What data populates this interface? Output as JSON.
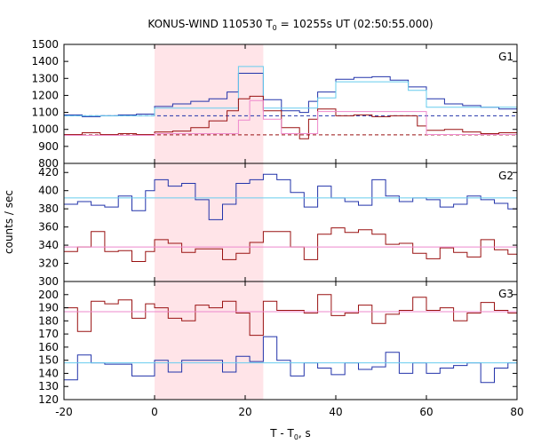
{
  "title": "KONUS-WIND 110530 T",
  "title_sub": "0",
  "title_rest": " = 10255s UT (02:50:55.000)",
  "ylabel": "counts / sec",
  "xlabel": "T - T",
  "xlabel_sub": "0",
  "xlabel_rest": ", s",
  "colors": {
    "shade": "#ffe4e8",
    "dark_blue": "#2233aa",
    "light_blue": "#66ccee",
    "dark_red": "#991111",
    "pink": "#ee88cc"
  },
  "chart_data": {
    "type": "line",
    "x_range": [
      -20,
      80
    ],
    "x_ticks": [
      -20,
      0,
      20,
      40,
      60,
      80
    ],
    "highlight": [
      0,
      24
    ],
    "panels": [
      {
        "name": "G1",
        "ylim": [
          800,
          1500
        ],
        "y_ticks": [
          800,
          900,
          1000,
          1100,
          1200,
          1300,
          1400,
          1500
        ],
        "series": [
          {
            "color": "dark_blue",
            "x": [
              -20,
              -16,
              -12,
              -8,
              -4,
              0,
              4,
              8,
              12,
              16,
              18.5,
              24,
              28,
              32,
              34,
              36,
              40,
              44,
              48,
              52,
              56,
              60,
              64,
              68,
              72,
              76,
              80
            ],
            "y": [
              1085,
              1075,
              1080,
              1085,
              1090,
              1135,
              1150,
              1165,
              1180,
              1220,
              1330,
              1175,
              1110,
              1100,
              1165,
              1220,
              1295,
              1305,
              1310,
              1290,
              1250,
              1180,
              1150,
              1140,
              1130,
              1120,
              1115
            ]
          },
          {
            "color": "light_blue",
            "x": [
              -20,
              -16,
              -12,
              -8,
              -4,
              0,
              4,
              8,
              12,
              16,
              18.5,
              24,
              28,
              32,
              34,
              36,
              40,
              44,
              48,
              52,
              56,
              60,
              64,
              68,
              72,
              76,
              80
            ],
            "y": [
              1080,
              1080,
              1080,
              1080,
              1080,
              1125,
              1125,
              1125,
              1125,
              1125,
              1370,
              1125,
              1125,
              1125,
              1125,
              1185,
              1280,
              1280,
              1280,
              1280,
              1230,
              1130,
              1130,
              1130,
              1130,
              1130,
              1130
            ]
          },
          {
            "color": "dark_red",
            "x": [
              -20,
              -16,
              -12,
              -8,
              -4,
              0,
              4,
              8,
              12,
              16,
              18.5,
              21,
              24,
              28,
              32,
              34,
              36,
              40,
              44,
              48,
              52,
              56,
              58,
              60,
              64,
              68,
              72,
              76,
              80
            ],
            "y": [
              970,
              980,
              970,
              975,
              970,
              985,
              990,
              1010,
              1050,
              1110,
              1180,
              1195,
              1110,
              1010,
              945,
              1060,
              1120,
              1080,
              1085,
              1075,
              1080,
              1080,
              1020,
              995,
              1000,
              985,
              975,
              980,
              970
            ]
          },
          {
            "color": "pink",
            "x": [
              -20,
              -16,
              -12,
              -8,
              -4,
              0,
              4,
              8,
              12,
              16,
              18.5,
              21,
              24,
              28,
              32,
              34,
              36,
              40,
              44,
              48,
              52,
              56,
              58,
              60,
              64,
              68,
              72,
              76,
              80
            ],
            "y": [
              965,
              965,
              965,
              965,
              965,
              975,
              975,
              975,
              975,
              975,
              1055,
              1170,
              1060,
              975,
              975,
              975,
              1105,
              1105,
              1105,
              1105,
              1105,
              1105,
              1105,
              970,
              970,
              970,
              970,
              970,
              970
            ]
          }
        ],
        "dashed": [
          {
            "color": "dark_blue",
            "y": 1080
          },
          {
            "color": "dark_red",
            "y": 968
          }
        ]
      },
      {
        "name": "G2",
        "ylim": [
          300,
          430
        ],
        "y_ticks": [
          300,
          320,
          340,
          360,
          380,
          400,
          420
        ],
        "series": [
          {
            "color": "dark_blue",
            "x": [
              -20,
              -17,
              -14,
              -11,
              -8,
              -5,
              -2,
              0,
              3,
              6,
              9,
              12,
              15,
              18,
              21,
              24,
              27,
              30,
              33,
              36,
              39,
              42,
              45,
              48,
              51,
              54,
              57,
              60,
              63,
              66,
              69,
              72,
              75,
              78,
              80
            ],
            "y": [
              385,
              388,
              384,
              382,
              394,
              378,
              400,
              412,
              405,
              408,
              390,
              368,
              385,
              408,
              412,
              418,
              412,
              398,
              382,
              405,
              392,
              388,
              384,
              412,
              394,
              388,
              392,
              390,
              382,
              385,
              394,
              390,
              386,
              380,
              375
            ]
          },
          {
            "color": "light_blue",
            "x": [
              -20,
              80
            ],
            "y": [
              392,
              392
            ]
          },
          {
            "color": "dark_red",
            "x": [
              -20,
              -17,
              -14,
              -11,
              -8,
              -5,
              -2,
              0,
              3,
              6,
              9,
              12,
              15,
              18,
              21,
              24,
              27,
              30,
              33,
              36,
              39,
              42,
              45,
              48,
              51,
              54,
              57,
              60,
              63,
              66,
              69,
              72,
              75,
              78,
              80
            ],
            "y": [
              333,
              338,
              355,
              333,
              334,
              322,
              333,
              346,
              342,
              332,
              336,
              336,
              324,
              331,
              343,
              355,
              355,
              338,
              324,
              352,
              359,
              354,
              357,
              352,
              341,
              342,
              331,
              325,
              337,
              332,
              327,
              346,
              335,
              330,
              326
            ]
          },
          {
            "color": "pink",
            "x": [
              -20,
              80
            ],
            "y": [
              338,
              338
            ]
          }
        ],
        "dashed": []
      },
      {
        "name": "G3",
        "ylim": [
          120,
          210
        ],
        "y_ticks": [
          120,
          130,
          140,
          150,
          160,
          170,
          180,
          190,
          200
        ],
        "series": [
          {
            "color": "dark_blue",
            "x": [
              -20,
              -17,
              -14,
              -11,
              -8,
              -5,
              -2,
              0,
              3,
              6,
              9,
              12,
              15,
              18,
              21,
              24,
              27,
              30,
              33,
              36,
              39,
              42,
              45,
              48,
              51,
              54,
              57,
              60,
              63,
              66,
              69,
              72,
              75,
              78,
              80
            ],
            "y": [
              135,
              154,
              148,
              147,
              147,
              138,
              138,
              150,
              141,
              150,
              150,
              150,
              141,
              153,
              149,
              168,
              150,
              138,
              148,
              144,
              139,
              148,
              143,
              145,
              156,
              140,
              148,
              140,
              144,
              146,
              148,
              133,
              144,
              148,
              152
            ]
          },
          {
            "color": "light_blue",
            "x": [
              -20,
              80
            ],
            "y": [
              148,
              148
            ]
          },
          {
            "color": "dark_red",
            "x": [
              -20,
              -17,
              -14,
              -11,
              -8,
              -5,
              -2,
              0,
              3,
              6,
              9,
              12,
              15,
              18,
              21,
              24,
              27,
              30,
              33,
              36,
              39,
              42,
              45,
              48,
              51,
              54,
              57,
              60,
              63,
              66,
              69,
              72,
              75,
              78,
              80
            ],
            "y": [
              190,
              172,
              195,
              193,
              196,
              182,
              193,
              190,
              182,
              180,
              192,
              190,
              195,
              186,
              169,
              195,
              188,
              188,
              186,
              200,
              184,
              186,
              192,
              178,
              185,
              188,
              198,
              188,
              190,
              180,
              186,
              194,
              188,
              186,
              190
            ]
          },
          {
            "color": "pink",
            "x": [
              -20,
              80
            ],
            "y": [
              187,
              187
            ]
          }
        ],
        "dashed": []
      }
    ]
  }
}
